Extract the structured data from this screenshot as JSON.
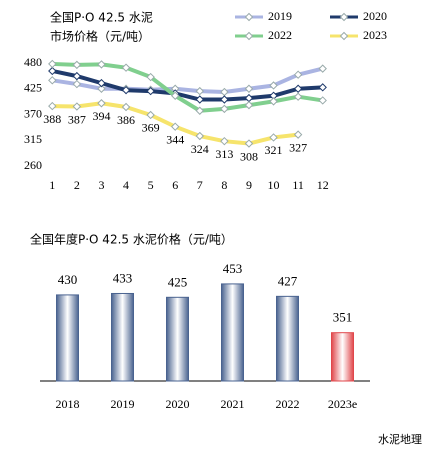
{
  "chart_data": [
    {
      "type": "line",
      "title": "全国P·O 42.5 水泥",
      "subtitle": "市场价格（元/吨）",
      "categories": [
        "1",
        "2",
        "3",
        "4",
        "5",
        "6",
        "7",
        "8",
        "9",
        "10",
        "11",
        "12"
      ],
      "series": [
        {
          "name": "2019",
          "color": "#aab4e2",
          "values": [
            443,
            435,
            425,
            425,
            423,
            425,
            420,
            418,
            425,
            432,
            455,
            468
          ]
        },
        {
          "name": "2020",
          "color": "#1f3a6b",
          "values": [
            463,
            452,
            437,
            422,
            420,
            415,
            402,
            402,
            405,
            410,
            425,
            428
          ]
        },
        {
          "name": "2022",
          "color": "#80cf8e",
          "values": [
            478,
            476,
            477,
            470,
            450,
            410,
            378,
            382,
            390,
            398,
            408,
            400
          ]
        },
        {
          "name": "2023",
          "color": "#f6e46c",
          "values": [
            388,
            387,
            394,
            386,
            369,
            344,
            324,
            313,
            308,
            321,
            327,
            null
          ]
        }
      ],
      "data_label_series": "2023",
      "data_label_color": "#e07b2a",
      "ylim": [
        260,
        480
      ],
      "yticks": [
        260,
        315,
        370,
        425,
        480
      ]
    },
    {
      "type": "bar",
      "title": "全国年度P·O 42.5 水泥价格（元/吨）",
      "categories": [
        "2018",
        "2019",
        "2020",
        "2021",
        "2022",
        "2023e"
      ],
      "values": [
        430,
        433,
        425,
        453,
        427,
        351
      ],
      "colors": [
        "#4a6390",
        "#4a6390",
        "#4a6390",
        "#4a6390",
        "#4a6390",
        "#e0474b"
      ],
      "value_label_color": "#1f3a6b",
      "ylim": [
        250,
        480
      ]
    }
  ],
  "watermark": "水泥地理"
}
